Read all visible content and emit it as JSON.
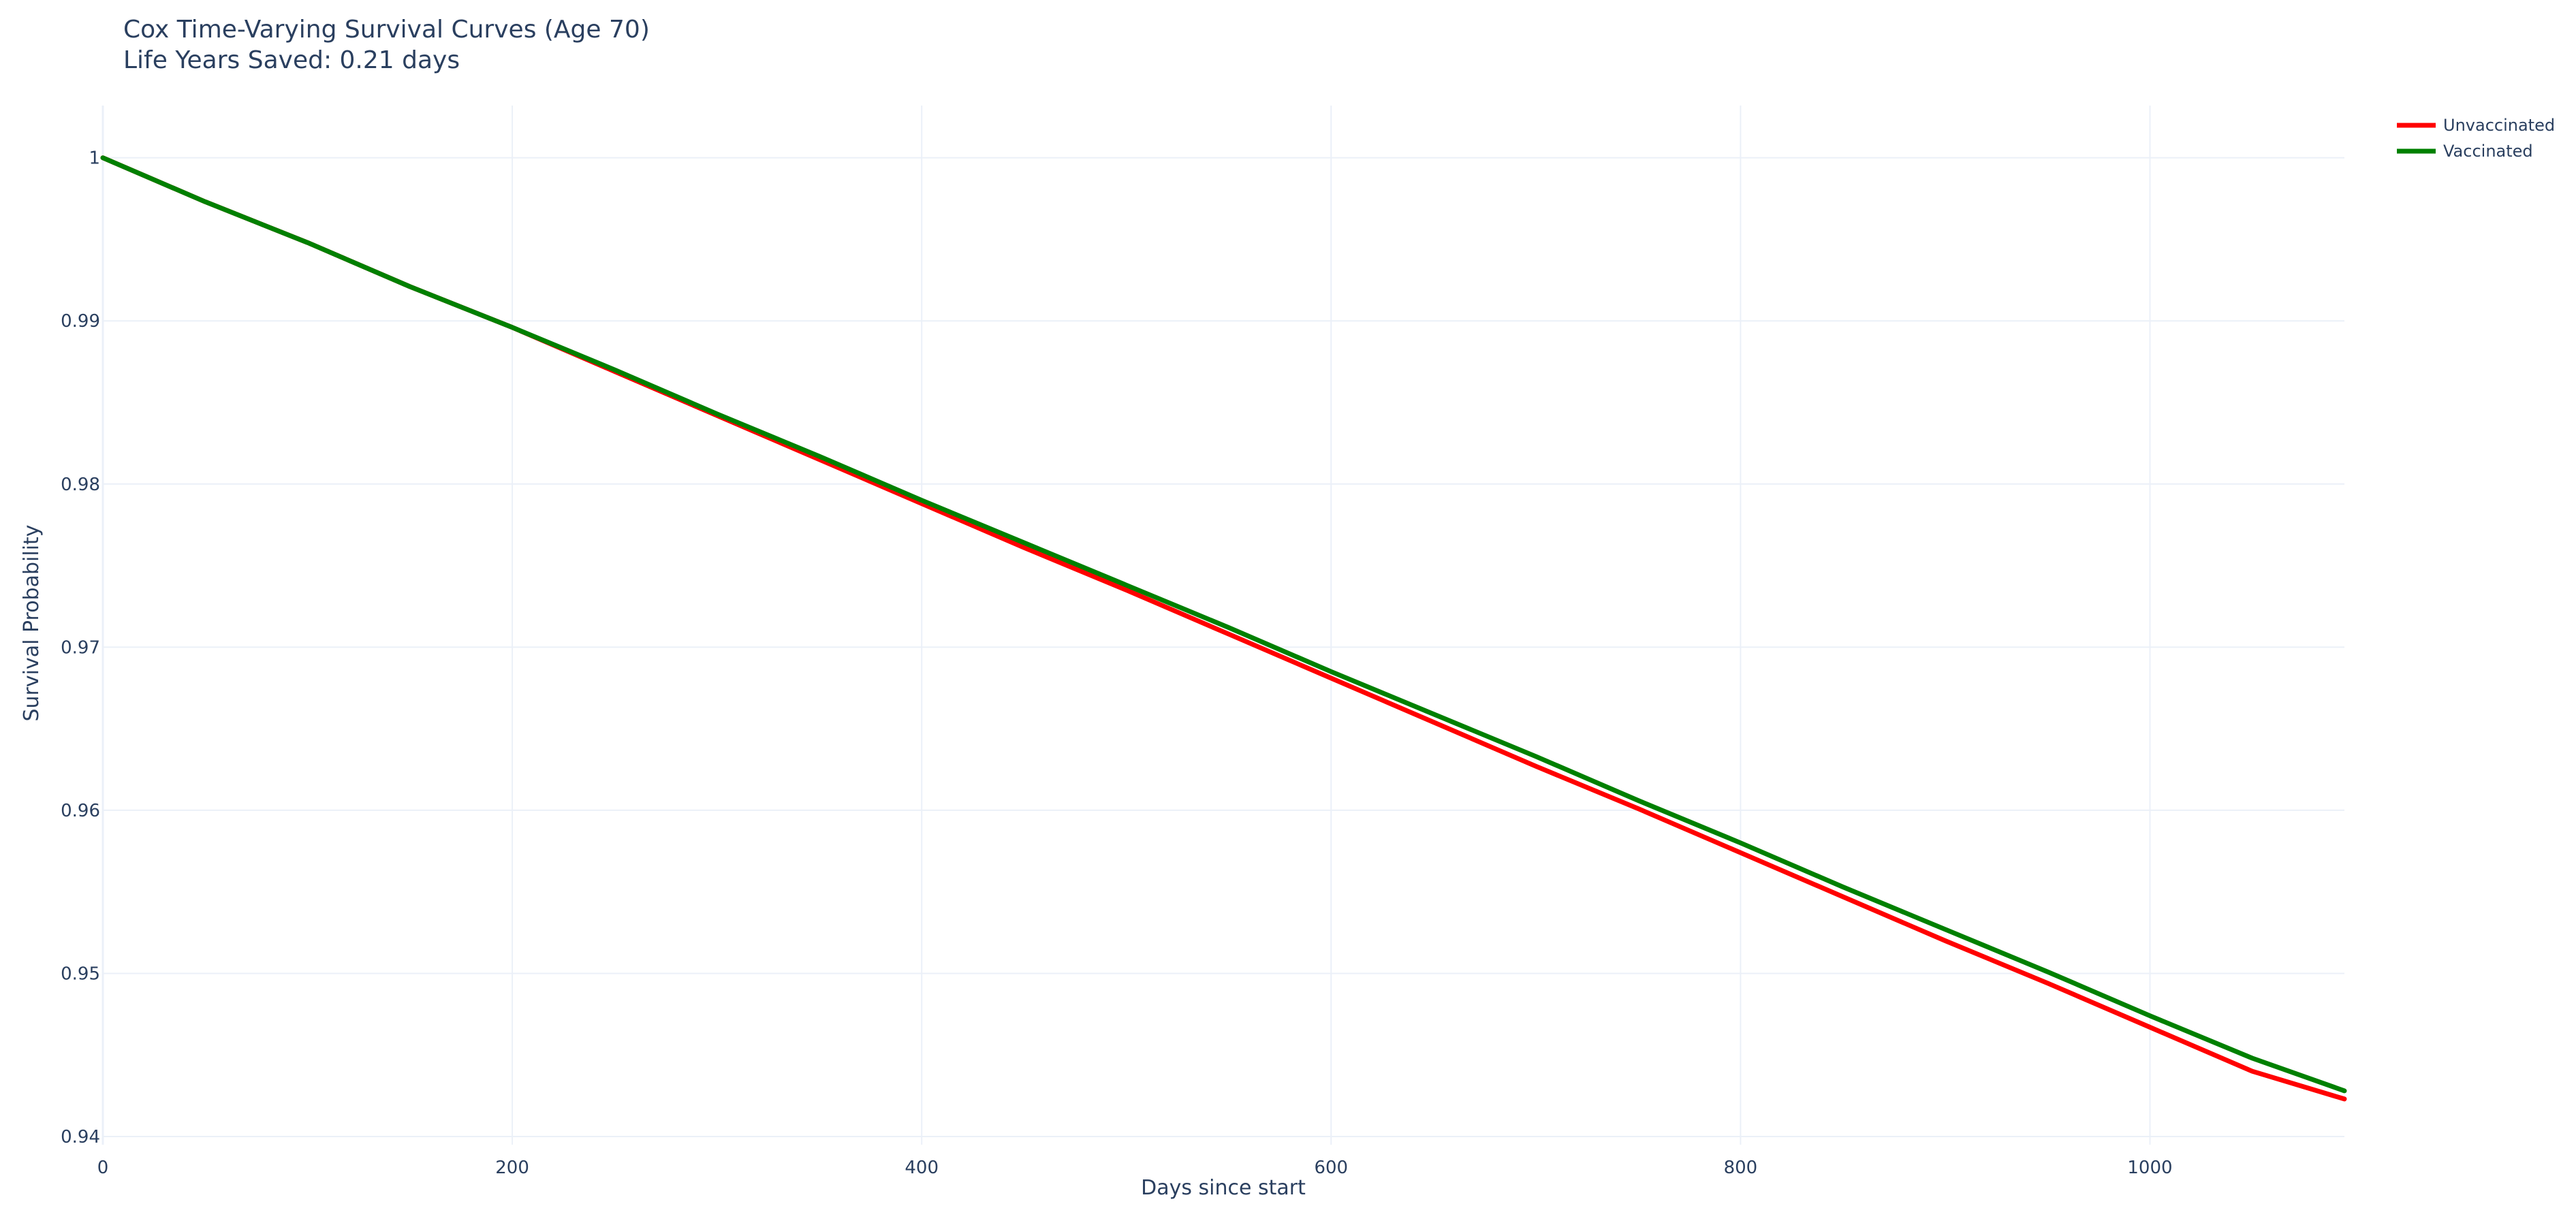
{
  "chart_data": {
    "type": "line",
    "title": "Cox Time-Varying Survival Curves (Age 70)",
    "subtitle": "Life Years Saved: 0.21 days",
    "xlabel": "Days since start",
    "ylabel": "Survival Probability",
    "xlim": [
      0,
      1095
    ],
    "ylim": [
      0.9395,
      1.0032
    ],
    "xticks": [
      0,
      200,
      400,
      600,
      800,
      1000
    ],
    "yticks": [
      0.94,
      0.95,
      0.96,
      0.97,
      0.98,
      0.99,
      1
    ],
    "grid": true,
    "legend_position": "top-right",
    "series": [
      {
        "name": "Unvaccinated",
        "color": "#ff0000",
        "x": [
          0,
          50,
          100,
          150,
          200,
          250,
          300,
          350,
          400,
          450,
          500,
          550,
          600,
          650,
          700,
          750,
          800,
          850,
          900,
          950,
          1000,
          1050,
          1095
        ],
        "y": [
          1.0,
          0.9973,
          0.9948,
          0.9921,
          0.9896,
          0.9869,
          0.9842,
          0.9815,
          0.9788,
          0.9761,
          0.9735,
          0.9708,
          0.9681,
          0.9654,
          0.9627,
          0.9601,
          0.9574,
          0.9547,
          0.952,
          0.9494,
          0.9467,
          0.944,
          0.9423
        ]
      },
      {
        "name": "Vaccinated",
        "color": "#008000",
        "x": [
          0,
          50,
          100,
          150,
          200,
          250,
          300,
          350,
          400,
          450,
          500,
          550,
          600,
          650,
          700,
          750,
          800,
          850,
          900,
          950,
          1000,
          1050,
          1095
        ],
        "y": [
          1.0,
          0.9973,
          0.9948,
          0.9921,
          0.9896,
          0.987,
          0.9843,
          0.9817,
          0.979,
          0.9764,
          0.9738,
          0.9712,
          0.9685,
          0.9659,
          0.9633,
          0.9606,
          0.958,
          0.9553,
          0.9527,
          0.9501,
          0.9474,
          0.9448,
          0.9428
        ]
      }
    ]
  }
}
